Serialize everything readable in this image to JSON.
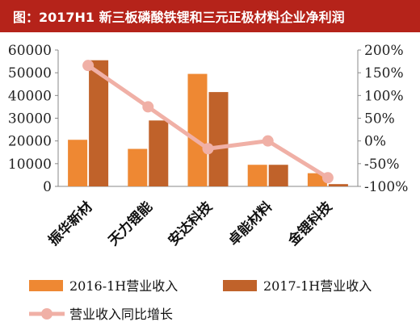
{
  "header": {
    "title": "图：2017H1 新三板磷酸铁锂和三元正极材料企业净利润"
  },
  "colors": {
    "title_bg": "#b5231a",
    "bar_2016": "#ee8833",
    "bar_2017": "#c0622a",
    "line_growth": "#f0b0a6",
    "axis": "#888888"
  },
  "chart_data": {
    "type": "bar",
    "title": "图：2017H1 新三板磷酸铁锂和三元正极材料企业净利润",
    "categories": [
      "振华新材",
      "天力锂能",
      "安达科技",
      "卓能材料",
      "金锂科技"
    ],
    "series": [
      {
        "name": "2016-1H营业收入",
        "type": "bar",
        "axis": "left",
        "values": [
          20500,
          16500,
          49500,
          9500,
          5800
        ]
      },
      {
        "name": "2017-1H营业收入",
        "type": "bar",
        "axis": "left",
        "values": [
          55500,
          29000,
          41500,
          9500,
          1000
        ]
      },
      {
        "name": "营业收入同比增长",
        "type": "line",
        "axis": "right",
        "values": [
          166,
          75,
          -17,
          0,
          -81
        ]
      }
    ],
    "y_left": {
      "min": 0,
      "max": 60000,
      "ticks": [
        "0",
        "10000",
        "20000",
        "30000",
        "40000",
        "50000",
        "60000"
      ]
    },
    "y_right": {
      "min": -100,
      "max": 200,
      "ticks": [
        "-100%",
        "-50%",
        "0%",
        "50%",
        "100%",
        "150%",
        "200%"
      ]
    },
    "grid": false,
    "legend_position": "bottom"
  }
}
